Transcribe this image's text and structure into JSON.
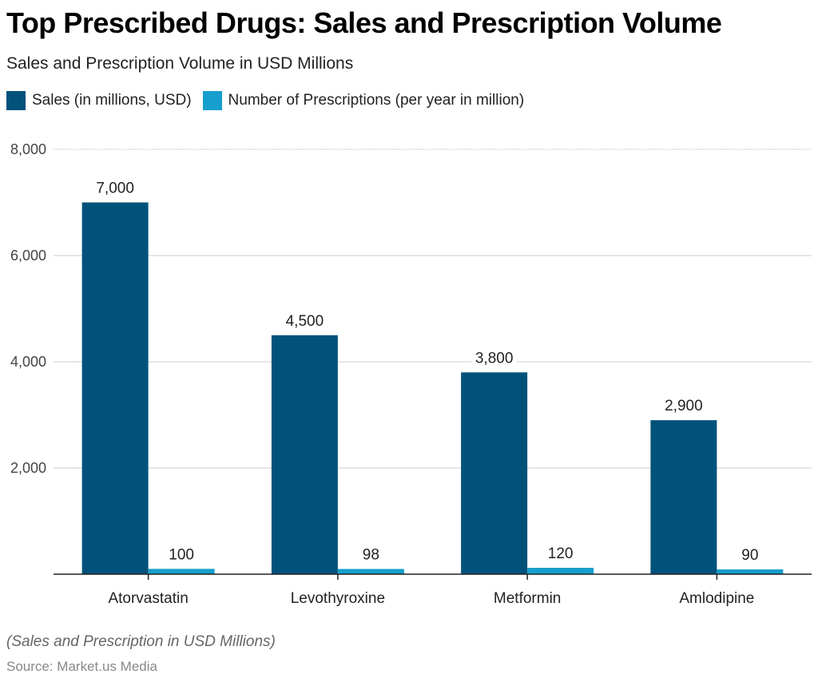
{
  "chart_data": {
    "type": "bar",
    "title": "Top Prescribed Drugs: Sales and Prescription Volume",
    "subtitle": "Sales and Prescription Volume in USD Millions",
    "categories": [
      "Atorvastatin",
      "Levothyroxine",
      "Metformin",
      "Amlodipine"
    ],
    "series": [
      {
        "name": "Sales (in millions, USD)",
        "color": "#00527A",
        "values": [
          7000,
          4500,
          3800,
          2900
        ],
        "labels": [
          "7,000",
          "4,500",
          "3,800",
          "2,900"
        ]
      },
      {
        "name": "Number of Prescriptions (per year in million)",
        "color": "#169FCC",
        "values": [
          100,
          98,
          120,
          90
        ],
        "labels": [
          "100",
          "98",
          "120",
          "90"
        ]
      }
    ],
    "xlabel": "",
    "ylabel": "",
    "ylim": [
      0,
      8000
    ],
    "yticks": [
      2000,
      4000,
      6000,
      8000
    ],
    "ytick_labels": [
      "2,000",
      "4,000",
      "6,000",
      "8,000"
    ],
    "grid": true,
    "legend_position": "top-left",
    "note": "(Sales and Prescription in USD Millions)",
    "source": "Source: Market.us Media"
  }
}
